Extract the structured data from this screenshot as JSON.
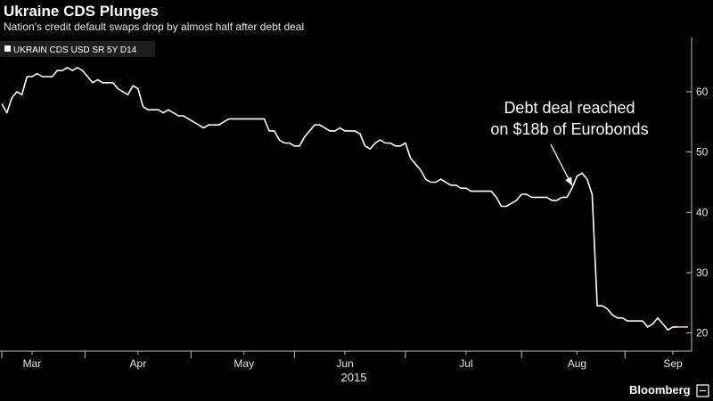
{
  "header": {
    "title": "Ukraine CDS Plunges",
    "subtitle": "Nation's credit default swaps drop by almost half after debt deal"
  },
  "branding": {
    "source": "Bloomberg"
  },
  "chart_data": {
    "type": "line",
    "title": "Ukraine CDS Plunges",
    "subtitle": "Nation's credit default swaps drop by almost half after debt deal",
    "series": [
      {
        "name": "UKRAIN CDS USD SR 5Y D14",
        "color": "#ffffff",
        "values": [
          58,
          56.5,
          59,
          60,
          59.5,
          62.5,
          62.5,
          63,
          62.5,
          62.5,
          62.5,
          63.5,
          63.5,
          64,
          63.5,
          64,
          63.5,
          62.5,
          61.5,
          62,
          61.5,
          61.5,
          61.5,
          60.5,
          60,
          59.5,
          61,
          60.5,
          57.5,
          57,
          57,
          57,
          56.5,
          57,
          56.5,
          56,
          56,
          55.5,
          55,
          54.5,
          54,
          54.5,
          54.5,
          54.5,
          55,
          55.5,
          55.5,
          55.5,
          55.5,
          55.5,
          55.5,
          55.5,
          55.5,
          53.5,
          53.5,
          52,
          51.5,
          51.5,
          51,
          51,
          52.5,
          53.5,
          54.5,
          54.5,
          54,
          53.5,
          53.5,
          54,
          53.5,
          53.5,
          53.5,
          53,
          51,
          50.5,
          51.5,
          52,
          51.5,
          51.5,
          51,
          51,
          51.5,
          49,
          48,
          47,
          45.5,
          45,
          45,
          45.5,
          45,
          44.5,
          44.5,
          44,
          44,
          43.5,
          43.5,
          43.5,
          43.5,
          43.5,
          42.5,
          41,
          41,
          41.5,
          42,
          43,
          43,
          42.5,
          42.5,
          42.5,
          42.5,
          42,
          42,
          42.5,
          42.5,
          44,
          46,
          46.5,
          45.5,
          43,
          24.5,
          24.5,
          24,
          23,
          22.5,
          22.5,
          22,
          22,
          22,
          22,
          21,
          21.5,
          22.5,
          21.5,
          20.5,
          21,
          21,
          21,
          21
        ]
      }
    ],
    "x_axis": {
      "months": [
        "Mar",
        "Apr",
        "May",
        "Jun",
        "Jul",
        "Aug",
        "Sep"
      ],
      "month_index": [
        6,
        27,
        48,
        68,
        92,
        114,
        133
      ],
      "year": "2015"
    },
    "y_axis": {
      "ticks": [
        20,
        30,
        40,
        50,
        60
      ],
      "range": [
        17,
        69
      ],
      "position": "right"
    },
    "grid": false,
    "legend": {
      "position": "top-left"
    },
    "annotations": [
      {
        "lines": [
          "Debt deal reached",
          "on $18b of Eurobonds"
        ],
        "target_index": 113,
        "arrow": true
      }
    ]
  }
}
